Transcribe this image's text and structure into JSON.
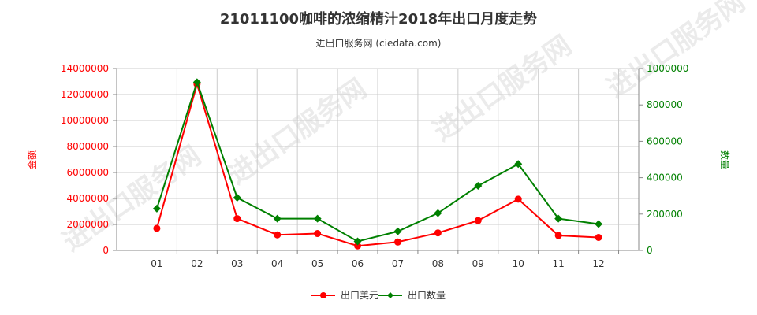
{
  "chart_data": {
    "type": "line",
    "title": "21011100咖啡的浓缩精汁2018年出口月度走势",
    "subtitle": "进出口服务网 (ciedata.com)",
    "categories": [
      "01",
      "02",
      "03",
      "04",
      "05",
      "06",
      "07",
      "08",
      "09",
      "10",
      "11",
      "12"
    ],
    "series": [
      {
        "name": "出口美元",
        "axis": "left",
        "color": "#ff0000",
        "marker": "circle",
        "values": [
          1700000,
          12800000,
          2450000,
          1200000,
          1300000,
          350000,
          650000,
          1350000,
          2300000,
          3950000,
          1150000,
          1000000
        ]
      },
      {
        "name": "出口数量",
        "axis": "right",
        "color": "#008000",
        "marker": "diamond",
        "values": [
          230000,
          925000,
          290000,
          175000,
          175000,
          50000,
          105000,
          205000,
          355000,
          475000,
          175000,
          145000
        ]
      }
    ],
    "y_left": {
      "label": "金额",
      "range": [
        0,
        14000000
      ],
      "ticks": [
        "0",
        "2000000",
        "4000000",
        "6000000",
        "8000000",
        "10000000",
        "12000000",
        "14000000"
      ],
      "color": "#ff0000"
    },
    "y_right": {
      "label": "数量",
      "range": [
        0,
        1000000
      ],
      "ticks": [
        "0",
        "200000",
        "400000",
        "600000",
        "800000",
        "1000000"
      ],
      "color": "#008000"
    },
    "grid": true,
    "legend_position": "bottom-center",
    "watermark": "进出口服务网"
  }
}
